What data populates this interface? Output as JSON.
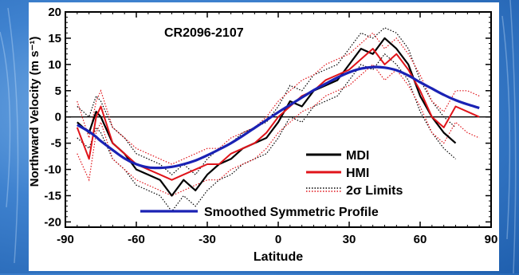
{
  "colors": {
    "mdi": "#000000",
    "hmi": "#e0141a",
    "profile": "#1a22b4",
    "zero_line": "#000000"
  },
  "chart_data": {
    "type": "line",
    "title": "CR2096-2107",
    "xlabel": "Latitude",
    "ylabel": "Northward Velocity (m s⁻¹)",
    "xlim": [
      -90,
      90
    ],
    "ylim": [
      -21,
      20
    ],
    "xticks": [
      -90,
      -60,
      -30,
      0,
      30,
      60,
      90
    ],
    "xtick_labels": [
      "-90",
      "-60",
      "-30",
      "0",
      "30",
      "60",
      "90"
    ],
    "yticks": [
      20,
      15,
      10,
      5,
      0,
      -5,
      -10,
      -15,
      -20
    ],
    "ytick_labels": [
      "20",
      "15",
      "10",
      "5",
      "0",
      "-5",
      "-10",
      "-15",
      "-20"
    ],
    "grid": false,
    "legend_position": "lower-right",
    "legend": [
      "MDI",
      "HMI",
      "2σ Limits",
      "Smoothed Symmetric Profile"
    ],
    "x": [
      -85,
      -80,
      -77,
      -75,
      -70,
      -65,
      -60,
      -55,
      -50,
      -45,
      -40,
      -35,
      -30,
      -25,
      -20,
      -15,
      -10,
      -5,
      0,
      5,
      10,
      15,
      20,
      25,
      30,
      35,
      40,
      45,
      50,
      55,
      60,
      65,
      70,
      75,
      80,
      85
    ],
    "series": [
      {
        "name": "MDI",
        "values": [
          -1,
          -3,
          1,
          0,
          -5,
          -7,
          -10,
          -11,
          -12,
          -15,
          -12,
          -14,
          -11,
          -9,
          -8,
          -6,
          -5,
          -4,
          -1,
          3,
          2,
          5,
          6,
          7,
          10,
          13,
          12,
          15,
          13,
          10,
          4,
          0,
          -3,
          -5,
          null,
          null
        ]
      },
      {
        "name": "HMI",
        "values": [
          -2,
          -8,
          0,
          2,
          -5,
          -7,
          -9,
          -10,
          -11,
          -12,
          -11,
          -10,
          -9,
          -9,
          -7,
          -6,
          -5,
          -3,
          0,
          2,
          4,
          5,
          7,
          8,
          9,
          11,
          13,
          10,
          12,
          9,
          5,
          0,
          -2,
          2,
          1,
          0
        ]
      },
      {
        "name": "Smoothed Symmetric Profile",
        "values": [
          -1.5,
          -2.8,
          -3.8,
          -4.6,
          -6.3,
          -7.9,
          -9.0,
          -9.6,
          -9.7,
          -9.5,
          -9.0,
          -8.3,
          -7.3,
          -6.2,
          -5.0,
          -3.6,
          -2.1,
          -0.6,
          0.9,
          2.3,
          3.7,
          5.1,
          6.3,
          7.5,
          8.5,
          9.2,
          9.5,
          9.4,
          8.9,
          7.9,
          6.6,
          5.4,
          4.2,
          3.2,
          2.4,
          1.7
        ]
      }
    ],
    "sigma_limits": {
      "mdi_upper": [
        2,
        0,
        4,
        3,
        -2,
        -4,
        -7,
        -8,
        -9,
        -11,
        -9,
        -11,
        -8,
        -6,
        -5,
        -3,
        -2,
        -1,
        2,
        6,
        5,
        8,
        9,
        10,
        13,
        16,
        15,
        17,
        16,
        13,
        7,
        3,
        0,
        -2,
        null,
        null
      ],
      "mdi_lower": [
        -4,
        -6,
        -2,
        -3,
        -8,
        -10,
        -13,
        -14,
        -15,
        -18,
        -15,
        -17,
        -14,
        -12,
        -11,
        -9,
        -8,
        -7,
        -4,
        0,
        -1,
        2,
        3,
        4,
        7,
        10,
        9,
        12,
        10,
        7,
        1,
        -3,
        -6,
        -8,
        null,
        null
      ],
      "hmi_upper": [
        3,
        -4,
        3,
        5,
        -2,
        -4,
        -6,
        -7,
        -8,
        -9,
        -8,
        -7,
        -6,
        -6,
        -4,
        -3,
        -2,
        0,
        3,
        5,
        7,
        8,
        10,
        11,
        12,
        14,
        16,
        13,
        15,
        12,
        8,
        3,
        1,
        5,
        5,
        4
      ],
      "hmi_lower": [
        -7,
        -12,
        -3,
        -1,
        -8,
        -10,
        -12,
        -13,
        -14,
        -15,
        -14,
        -13,
        -12,
        -12,
        -10,
        -9,
        -8,
        -6,
        -3,
        -1,
        1,
        2,
        4,
        5,
        6,
        8,
        10,
        7,
        9,
        6,
        2,
        -3,
        -5,
        -1,
        -3,
        -4
      ]
    }
  }
}
